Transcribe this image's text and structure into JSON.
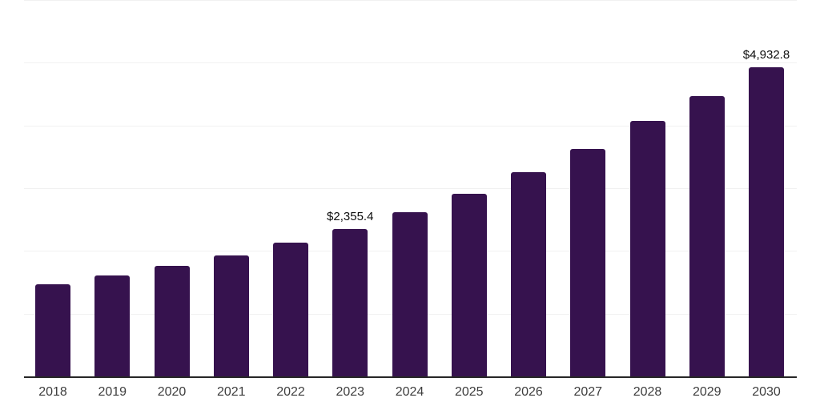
{
  "chart_data": {
    "type": "bar",
    "title": "",
    "xlabel": "",
    "ylabel": "",
    "categories": [
      "2018",
      "2019",
      "2020",
      "2021",
      "2022",
      "2023",
      "2024",
      "2025",
      "2026",
      "2027",
      "2028",
      "2029",
      "2030"
    ],
    "values": [
      1470,
      1605,
      1765,
      1930,
      2135,
      2355.4,
      2615,
      2910,
      3255,
      3625,
      4075,
      4470,
      4932.8
    ],
    "point_labels": [
      {
        "category": "2023",
        "text": "$2,355.4"
      },
      {
        "category": "2030",
        "text": "$4,932.8"
      }
    ],
    "ylim": [
      0,
      6000
    ],
    "gridline_step": 1000,
    "grid": "horizontal-only",
    "legend": "none",
    "y_tick_labels_visible": false,
    "colors": {
      "bar": "#36124E",
      "gridline": "#f1f1f1",
      "axis_line": "#262626",
      "x_label_text": "#3d3d3d",
      "point_label_text": "#0d0d0d",
      "background": "#ffffff"
    }
  }
}
